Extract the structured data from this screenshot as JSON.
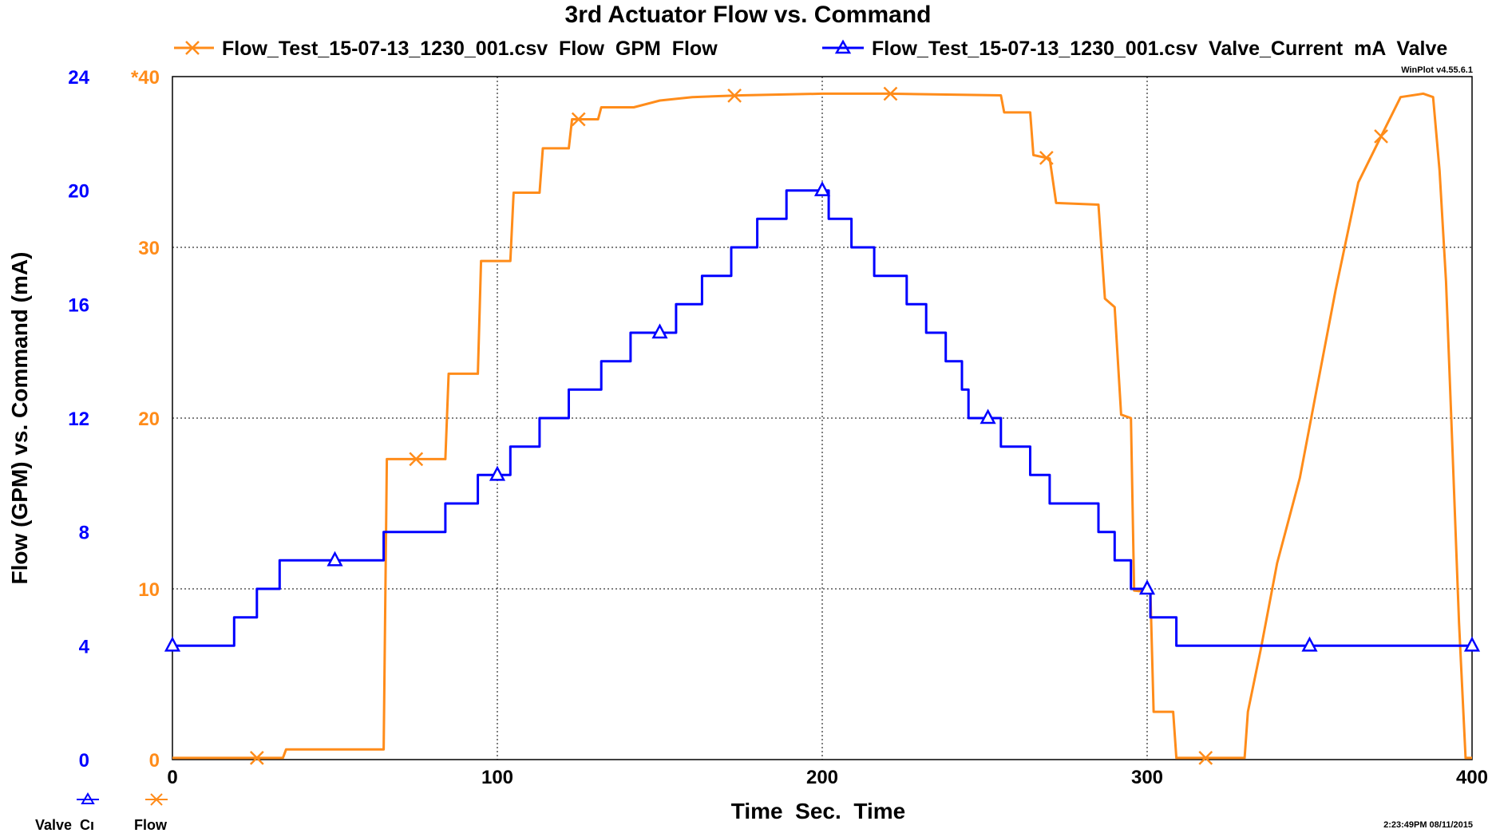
{
  "chart_data": {
    "type": "line",
    "title": "3rd Actuator Flow vs. Command",
    "xlabel": "Time  Sec.  Time",
    "ylabel": "Flow (GPM) vs. Command (mA)",
    "xlim": [
      0,
      400
    ],
    "x_ticks": [
      "0",
      "100",
      "200",
      "300",
      "400"
    ],
    "y_left": {
      "lim": [
        0,
        24
      ],
      "ticks": [
        "0",
        "4",
        "8",
        "12",
        "16",
        "20",
        "24"
      ],
      "color": "#0000ff"
    },
    "y_right": {
      "lim": [
        0,
        40
      ],
      "ticks": [
        "0",
        "10",
        "20",
        "30",
        "*40"
      ],
      "color": "#ff8c1a"
    },
    "grid": true,
    "legend_position": "top",
    "series": [
      {
        "name": "Flow_Test_15-07-13_1230_001.csv  Flow  GPM  Flow",
        "short_label": "Flow",
        "axis": "right",
        "color": "#ff8c1a",
        "marker": "x",
        "points": [
          [
            0,
            0.1
          ],
          [
            34,
            0.1
          ],
          [
            35,
            0.6
          ],
          [
            65,
            0.6
          ],
          [
            66,
            17.6
          ],
          [
            84,
            17.6
          ],
          [
            85,
            22.6
          ],
          [
            94,
            22.6
          ],
          [
            95,
            29.2
          ],
          [
            104,
            29.2
          ],
          [
            105,
            33.2
          ],
          [
            113,
            33.2
          ],
          [
            114,
            35.8
          ],
          [
            122,
            35.8
          ],
          [
            123,
            37.5
          ],
          [
            131,
            37.5
          ],
          [
            132,
            38.2
          ],
          [
            142,
            38.2
          ],
          [
            150,
            38.6
          ],
          [
            160,
            38.8
          ],
          [
            175,
            38.9
          ],
          [
            200,
            39.0
          ],
          [
            220,
            39.0
          ],
          [
            255,
            38.9
          ],
          [
            256,
            37.9
          ],
          [
            264,
            37.9
          ],
          [
            265,
            35.4
          ],
          [
            270,
            35.2
          ],
          [
            272,
            32.6
          ],
          [
            285,
            32.5
          ],
          [
            287,
            27.0
          ],
          [
            290,
            26.5
          ],
          [
            292,
            20.2
          ],
          [
            295,
            20.0
          ],
          [
            296,
            9.9
          ],
          [
            301,
            9.8
          ],
          [
            302,
            2.8
          ],
          [
            308,
            2.8
          ],
          [
            309,
            0.1
          ],
          [
            330,
            0.1
          ],
          [
            331,
            2.8
          ],
          [
            335,
            6.5
          ],
          [
            340,
            11.5
          ],
          [
            347,
            16.5
          ],
          [
            352,
            21.5
          ],
          [
            358,
            27.5
          ],
          [
            365,
            33.8
          ],
          [
            372,
            36.5
          ],
          [
            378,
            38.8
          ],
          [
            385,
            39.0
          ],
          [
            388,
            38.8
          ],
          [
            390,
            34.5
          ],
          [
            392,
            28
          ],
          [
            394,
            18
          ],
          [
            396,
            8
          ],
          [
            398,
            0.1
          ],
          [
            400,
            0.1
          ]
        ],
        "marker_x": [
          26,
          75,
          125,
          173,
          221,
          269,
          318,
          372
        ]
      },
      {
        "name": "Flow_Test_15-07-13_1230_001.csv  Valve_Current  mA  Valve",
        "short_label": "Valve  Cı",
        "axis": "left",
        "color": "#0000ff",
        "marker": "triangle",
        "points": [
          [
            0,
            4
          ],
          [
            19,
            4
          ],
          [
            19,
            5
          ],
          [
            26,
            5
          ],
          [
            26,
            6
          ],
          [
            33,
            6
          ],
          [
            33,
            7
          ],
          [
            65,
            7
          ],
          [
            65,
            8
          ],
          [
            84,
            8
          ],
          [
            84,
            9
          ],
          [
            94,
            9
          ],
          [
            94,
            10
          ],
          [
            104,
            10
          ],
          [
            104,
            11
          ],
          [
            113,
            11
          ],
          [
            113,
            12
          ],
          [
            122,
            12
          ],
          [
            122,
            13
          ],
          [
            132,
            13
          ],
          [
            132,
            14
          ],
          [
            141,
            14
          ],
          [
            141,
            15
          ],
          [
            155,
            15
          ],
          [
            155,
            16
          ],
          [
            163,
            16
          ],
          [
            163,
            17
          ],
          [
            172,
            17
          ],
          [
            172,
            18
          ],
          [
            180,
            18
          ],
          [
            180,
            19
          ],
          [
            189,
            19
          ],
          [
            189,
            20
          ],
          [
            202,
            20
          ],
          [
            202,
            19
          ],
          [
            209,
            19
          ],
          [
            209,
            18
          ],
          [
            216,
            18
          ],
          [
            216,
            17
          ],
          [
            226,
            17
          ],
          [
            226,
            16
          ],
          [
            232,
            16
          ],
          [
            232,
            15
          ],
          [
            238,
            15
          ],
          [
            238,
            14
          ],
          [
            243,
            14
          ],
          [
            243,
            13
          ],
          [
            245,
            13
          ],
          [
            245,
            12
          ],
          [
            255,
            12
          ],
          [
            255,
            11
          ],
          [
            264,
            11
          ],
          [
            264,
            10
          ],
          [
            270,
            10
          ],
          [
            270,
            9
          ],
          [
            285,
            9
          ],
          [
            285,
            8
          ],
          [
            290,
            8
          ],
          [
            290,
            7
          ],
          [
            295,
            7
          ],
          [
            295,
            6
          ],
          [
            301,
            6
          ],
          [
            301,
            5
          ],
          [
            309,
            5
          ],
          [
            309,
            4
          ],
          [
            400,
            4
          ]
        ],
        "marker_x": [
          0,
          50,
          100,
          150,
          200,
          251,
          300,
          350,
          400
        ]
      }
    ]
  },
  "version_label": "WinPlot v4.55.6.1",
  "timestamp": "2:23:49PM 08/11/2015"
}
